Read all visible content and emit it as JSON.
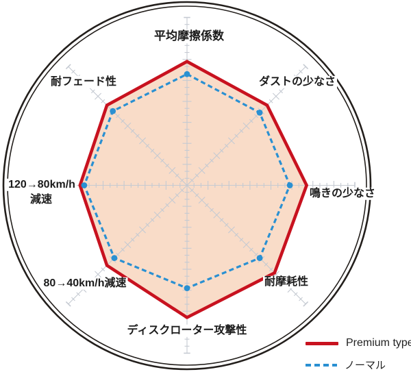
{
  "chart_data": {
    "type": "radar",
    "categories": [
      "平均摩擦係数",
      "ダストの少なさ",
      "鳴きの少なさ",
      "耐摩耗性",
      "ディスクローター攻撃性",
      "80→40km/h減速",
      "120→80km/h減速",
      "耐フェード性"
    ],
    "series": [
      {
        "name": "Premium type",
        "color": "#c8121f",
        "line_style": "solid",
        "fill": "#f9dcc8",
        "values": [
          5.9,
          5.4,
          5.7,
          5.9,
          6.3,
          5.4,
          5.1,
          5.4
        ]
      },
      {
        "name": "ノーマル",
        "color": "#2a90d2",
        "line_style": "dashed",
        "fill": "none",
        "values": [
          5.3,
          4.9,
          4.9,
          4.9,
          4.9,
          4.9,
          4.9,
          5.0
        ]
      }
    ],
    "scale": {
      "min": 0,
      "max": 8,
      "minor_tick": 0.333,
      "major_tick": 1
    },
    "start_axis": "top",
    "direction": "clockwise",
    "grid": "tick-marks-on-spokes",
    "outer_double_ring": true,
    "tick_color": "#c5cad2",
    "ring_color": "#231f1c",
    "legend_position": "bottom-right"
  },
  "axis_labels": {
    "n": "平均摩擦係数",
    "ne": "ダストの少なさ",
    "e": "鳴きの少なさ",
    "se": "耐摩耗性",
    "s": "ディスクローター攻撃性",
    "sw": "80→40km/h減速",
    "w_line1": "120→80km/h",
    "w_line2": "減速",
    "nw": "耐フェード性"
  },
  "legend": {
    "items": [
      {
        "label": "Premium type",
        "color": "#c8121f",
        "style": "solid"
      },
      {
        "label": "ノーマル",
        "color": "#2a90d2",
        "style": "dashed"
      }
    ]
  }
}
